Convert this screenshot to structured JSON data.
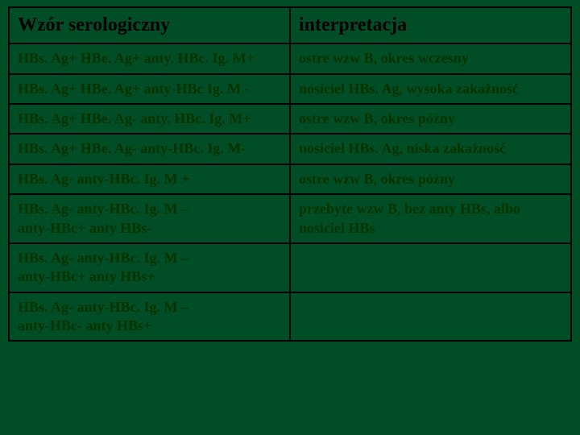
{
  "colors": {
    "background": "#004d26",
    "border": "#000000",
    "header_text": "#000000",
    "body_text": "#003300"
  },
  "table": {
    "headers": {
      "left": "Wzór serologiczny",
      "right": "interpretacja"
    },
    "rows": [
      {
        "left": "HBs. Ag+ HBe. Ag+ anty. HBc. Ig. M+",
        "right": "ostre wzw B, okres wczesny"
      },
      {
        "left": "HBs. Ag+ HBe. Ag+ anty-HBc Ig. M -",
        "right": "nosiciel HBs. Ag, wysoka zakażność"
      },
      {
        "left": "HBs. Ag+ HBe. Ag- anty. HBc. Ig. M+",
        "right": "ostre wzw B, okres późny"
      },
      {
        "left": "HBs. Ag+ HBe. Ag- anty-HBc. Ig. M-",
        "right": "nosiciel HBs. Ag, niska zakażność"
      },
      {
        "left": "HBs. Ag- anty-HBc. Ig. M +",
        "right": "ostre wzw B, okres późny"
      },
      {
        "left": "HBs. Ag- anty-HBc. Ig. M –\nanty-HBc+ anty HBs-",
        "right": "przebyte wzw B, bez anty HBs, albo nosiciel HBs"
      },
      {
        "left": "HBs. Ag- anty-HBc. Ig. M –\nanty-HBc+ anty HBs+",
        "right": ""
      },
      {
        "left": "HBs. Ag- anty-HBc. Ig. M –\nanty-HBc- anty HBs+",
        "right": ""
      }
    ]
  }
}
